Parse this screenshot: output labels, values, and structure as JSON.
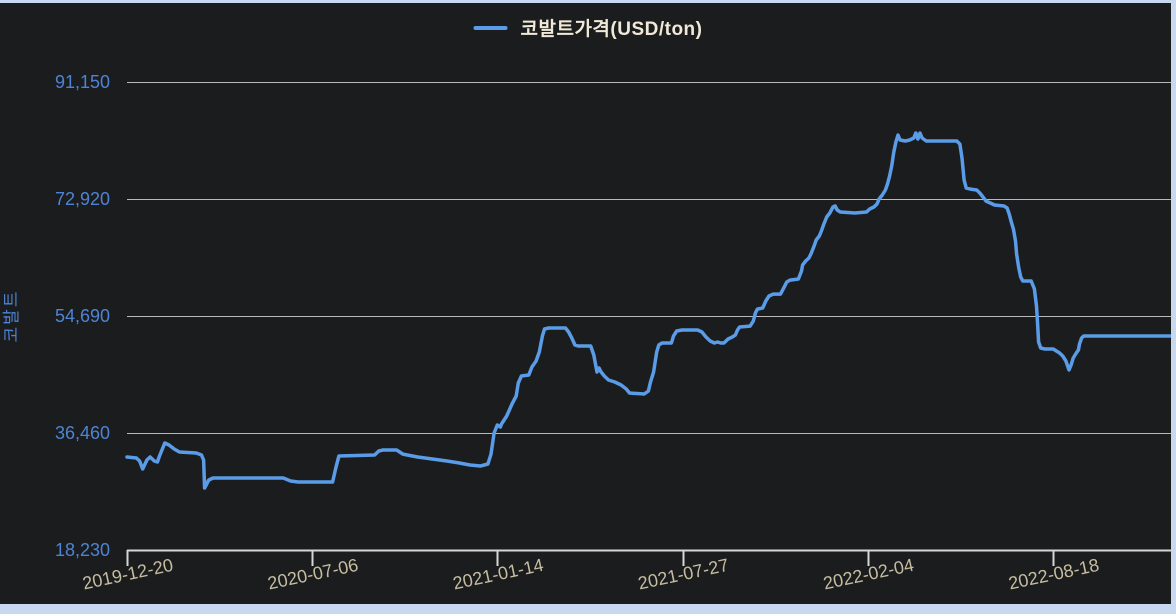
{
  "app": {
    "background_color": "#1b1c1e",
    "frame_color": "#c8d8ee"
  },
  "chart_data": {
    "type": "line",
    "title": "",
    "ylabel": "코발트",
    "xlabel": "",
    "grid": "horizontal",
    "legend_position": "top-center",
    "legend": [
      "코발트가격(USD/ton)"
    ],
    "ylim": [
      18230,
      91150
    ],
    "y_tick_labels": [
      "91,150",
      "72,920",
      "54,690",
      "36,460",
      "18,230"
    ],
    "y_tick_values": [
      91150,
      72920,
      54690,
      36460,
      18230
    ],
    "x_tick_labels": [
      "2019-12-20",
      "2020-07-06",
      "2021-01-14",
      "2021-07-27",
      "2022-02-04",
      "2022-08-18"
    ],
    "series": [
      {
        "name": "코발트가격(USD/ton)",
        "color": "#5a9ce8",
        "x_unit": "fraction-of-plot-width",
        "y_unit": "USD/ton",
        "points": [
          [
            0.0,
            32720
          ],
          [
            0.009,
            32560
          ],
          [
            0.012,
            32100
          ],
          [
            0.015,
            30850
          ],
          [
            0.019,
            32250
          ],
          [
            0.022,
            32720
          ],
          [
            0.026,
            32100
          ],
          [
            0.029,
            31940
          ],
          [
            0.031,
            32870
          ],
          [
            0.036,
            34900
          ],
          [
            0.04,
            34590
          ],
          [
            0.045,
            33960
          ],
          [
            0.05,
            33500
          ],
          [
            0.066,
            33340
          ],
          [
            0.071,
            33030
          ],
          [
            0.073,
            32250
          ],
          [
            0.074,
            27890
          ],
          [
            0.078,
            29140
          ],
          [
            0.082,
            29450
          ],
          [
            0.149,
            29450
          ],
          [
            0.156,
            28980
          ],
          [
            0.163,
            28830
          ],
          [
            0.196,
            28830
          ],
          [
            0.199,
            31010
          ],
          [
            0.202,
            32870
          ],
          [
            0.236,
            33030
          ],
          [
            0.24,
            33650
          ],
          [
            0.244,
            33810
          ],
          [
            0.257,
            33810
          ],
          [
            0.263,
            33180
          ],
          [
            0.277,
            32720
          ],
          [
            0.291,
            32410
          ],
          [
            0.305,
            32100
          ],
          [
            0.317,
            31790
          ],
          [
            0.327,
            31480
          ],
          [
            0.337,
            31320
          ],
          [
            0.344,
            31630
          ],
          [
            0.347,
            33180
          ],
          [
            0.35,
            36460
          ],
          [
            0.353,
            37700
          ],
          [
            0.356,
            37390
          ],
          [
            0.357,
            37860
          ],
          [
            0.362,
            39110
          ],
          [
            0.367,
            40980
          ],
          [
            0.371,
            42230
          ],
          [
            0.373,
            44250
          ],
          [
            0.376,
            45340
          ],
          [
            0.383,
            45500
          ],
          [
            0.386,
            46740
          ],
          [
            0.39,
            47680
          ],
          [
            0.393,
            49080
          ],
          [
            0.396,
            51570
          ],
          [
            0.398,
            52660
          ],
          [
            0.402,
            52820
          ],
          [
            0.418,
            52820
          ],
          [
            0.421,
            52200
          ],
          [
            0.424,
            51260
          ],
          [
            0.427,
            50170
          ],
          [
            0.43,
            50020
          ],
          [
            0.442,
            50020
          ],
          [
            0.445,
            48620
          ],
          [
            0.448,
            45960
          ],
          [
            0.45,
            46590
          ],
          [
            0.452,
            45960
          ],
          [
            0.455,
            45340
          ],
          [
            0.459,
            44720
          ],
          [
            0.465,
            44400
          ],
          [
            0.471,
            43940
          ],
          [
            0.476,
            43310
          ],
          [
            0.479,
            42690
          ],
          [
            0.493,
            42530
          ],
          [
            0.497,
            43000
          ],
          [
            0.499,
            44400
          ],
          [
            0.502,
            45960
          ],
          [
            0.505,
            49080
          ],
          [
            0.507,
            50170
          ],
          [
            0.51,
            50480
          ],
          [
            0.519,
            50480
          ],
          [
            0.521,
            51570
          ],
          [
            0.524,
            52350
          ],
          [
            0.529,
            52510
          ],
          [
            0.544,
            52510
          ],
          [
            0.548,
            52200
          ],
          [
            0.552,
            51420
          ],
          [
            0.556,
            50790
          ],
          [
            0.56,
            50480
          ],
          [
            0.563,
            50640
          ],
          [
            0.566,
            50480
          ],
          [
            0.569,
            50480
          ],
          [
            0.573,
            51100
          ],
          [
            0.577,
            51420
          ],
          [
            0.58,
            51730
          ],
          [
            0.582,
            52510
          ],
          [
            0.584,
            52970
          ],
          [
            0.594,
            53120
          ],
          [
            0.597,
            53900
          ],
          [
            0.599,
            55150
          ],
          [
            0.601,
            55770
          ],
          [
            0.606,
            55930
          ],
          [
            0.609,
            57020
          ],
          [
            0.612,
            57800
          ],
          [
            0.616,
            58110
          ],
          [
            0.623,
            58110
          ],
          [
            0.626,
            59050
          ],
          [
            0.629,
            59980
          ],
          [
            0.632,
            60290
          ],
          [
            0.64,
            60450
          ],
          [
            0.643,
            61700
          ],
          [
            0.644,
            62630
          ],
          [
            0.647,
            63260
          ],
          [
            0.65,
            63720
          ],
          [
            0.652,
            64350
          ],
          [
            0.655,
            65590
          ],
          [
            0.657,
            66530
          ],
          [
            0.66,
            67150
          ],
          [
            0.662,
            67930
          ],
          [
            0.664,
            68870
          ],
          [
            0.667,
            70110
          ],
          [
            0.67,
            70740
          ],
          [
            0.673,
            71670
          ],
          [
            0.675,
            71830
          ],
          [
            0.677,
            71200
          ],
          [
            0.68,
            70890
          ],
          [
            0.694,
            70740
          ],
          [
            0.705,
            70890
          ],
          [
            0.708,
            71360
          ],
          [
            0.712,
            71670
          ],
          [
            0.715,
            72140
          ],
          [
            0.717,
            72920
          ],
          [
            0.72,
            73540
          ],
          [
            0.723,
            74320
          ],
          [
            0.725,
            75250
          ],
          [
            0.727,
            76500
          ],
          [
            0.729,
            78060
          ],
          [
            0.731,
            80240
          ],
          [
            0.733,
            81800
          ],
          [
            0.735,
            82890
          ],
          [
            0.737,
            82110
          ],
          [
            0.742,
            81950
          ],
          [
            0.746,
            82110
          ],
          [
            0.75,
            82420
          ],
          [
            0.752,
            83200
          ],
          [
            0.754,
            82260
          ],
          [
            0.756,
            83200
          ],
          [
            0.758,
            82420
          ],
          [
            0.762,
            81950
          ],
          [
            0.775,
            81950
          ],
          [
            0.791,
            81950
          ],
          [
            0.794,
            81480
          ],
          [
            0.796,
            79300
          ],
          [
            0.798,
            75870
          ],
          [
            0.8,
            74630
          ],
          [
            0.804,
            74470
          ],
          [
            0.81,
            74320
          ],
          [
            0.813,
            73850
          ],
          [
            0.816,
            73230
          ],
          [
            0.819,
            72600
          ],
          [
            0.823,
            72290
          ],
          [
            0.827,
            71980
          ],
          [
            0.836,
            71830
          ],
          [
            0.839,
            71510
          ],
          [
            0.841,
            70580
          ],
          [
            0.843,
            69330
          ],
          [
            0.845,
            68240
          ],
          [
            0.847,
            66370
          ],
          [
            0.848,
            64350
          ],
          [
            0.85,
            62320
          ],
          [
            0.852,
            60760
          ],
          [
            0.854,
            60140
          ],
          [
            0.862,
            60140
          ],
          [
            0.865,
            58890
          ],
          [
            0.867,
            56240
          ],
          [
            0.868,
            53750
          ],
          [
            0.869,
            50640
          ],
          [
            0.871,
            49700
          ],
          [
            0.875,
            49550
          ],
          [
            0.883,
            49550
          ],
          [
            0.886,
            49240
          ],
          [
            0.889,
            48930
          ],
          [
            0.892,
            48460
          ],
          [
            0.895,
            47680
          ],
          [
            0.897,
            46740
          ],
          [
            0.898,
            46280
          ],
          [
            0.9,
            47060
          ],
          [
            0.902,
            48150
          ],
          [
            0.905,
            48930
          ],
          [
            0.907,
            49390
          ],
          [
            0.908,
            50330
          ],
          [
            0.91,
            51260
          ],
          [
            0.912,
            51570
          ],
          [
            0.928,
            51570
          ],
          [
            0.947,
            51570
          ],
          [
            0.966,
            51570
          ],
          [
            0.985,
            51570
          ],
          [
            1.0,
            51570
          ]
        ]
      }
    ]
  }
}
